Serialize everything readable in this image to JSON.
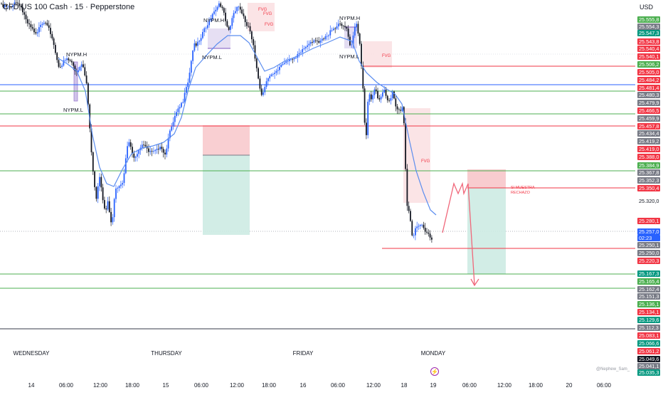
{
  "header": {
    "title": "CFD US 100 Cash · 15 · Pepperstone",
    "currency": "USD"
  },
  "watermark": "@Nephew_Sam_",
  "price_scale": {
    "ticks": [
      {
        "text": "25.555,8",
        "color": "#4caf50"
      },
      {
        "text": "25.554,3",
        "color": "#787b86"
      },
      {
        "text": "25.547,3",
        "color": "#089981"
      },
      {
        "text": "25.543,8",
        "color": "#f23645"
      },
      {
        "text": "25.540,4",
        "color": "#f23645"
      },
      {
        "text": "25.540,1",
        "color": "#f23645"
      },
      {
        "text": "25.506,2",
        "color": "#4caf50"
      },
      {
        "text": "25.505,0",
        "color": "#f23645"
      },
      {
        "text": "25.484,2",
        "color": "#f23645"
      },
      {
        "text": "25.481,4",
        "color": "#f23645"
      },
      {
        "text": "25.480,3",
        "color": "#787b86"
      },
      {
        "text": "25.479,9",
        "color": "#787b86"
      },
      {
        "text": "25.466,5",
        "color": "#f23645"
      },
      {
        "text": "25.459,9",
        "color": "#787b86"
      },
      {
        "text": "25.457,8",
        "color": "#f23645"
      },
      {
        "text": "25.434,4",
        "color": "#787b86"
      },
      {
        "text": "25.419,2",
        "color": "#787b86"
      },
      {
        "text": "25.419,0",
        "color": "#f23645"
      },
      {
        "text": "25.388,0",
        "color": "#f23645"
      },
      {
        "text": "25.384,9",
        "color": "#4caf50"
      },
      {
        "text": "25.367,8",
        "color": "#787b86"
      },
      {
        "text": "25.352,3",
        "color": "#787b86"
      },
      {
        "text": "25.350,4",
        "color": "#f23645"
      },
      {
        "text": "25.320,0",
        "color": "plain"
      },
      {
        "text": "25.280,1",
        "color": "#f23645"
      },
      {
        "text": "25.257,0",
        "color": "#2962ff"
      },
      {
        "text": "02:23",
        "color": "#2962ff"
      },
      {
        "text": "25.250,1",
        "color": "#787b86"
      },
      {
        "text": "25.250,0",
        "color": "#787b86"
      },
      {
        "text": "25.220,3",
        "color": "#f23645"
      },
      {
        "text": "25.167,3",
        "color": "#089981"
      },
      {
        "text": "25.165,4",
        "color": "#4caf50"
      },
      {
        "text": "25.162,4",
        "color": "#787b86"
      },
      {
        "text": "25.151,3",
        "color": "#787b86"
      },
      {
        "text": "25.136,1",
        "color": "#4caf50"
      },
      {
        "text": "25.134,1",
        "color": "#f23645"
      },
      {
        "text": "25.129,6",
        "color": "#089981"
      },
      {
        "text": "25.112,3",
        "color": "#787b86"
      },
      {
        "text": "25.083,1",
        "color": "#f23645"
      },
      {
        "text": "25.066,6",
        "color": "#089981"
      },
      {
        "text": "25.061,2",
        "color": "#f23645"
      },
      {
        "text": "25.049,6",
        "color": "#131722"
      },
      {
        "text": "25.041,1",
        "color": "#787b86"
      },
      {
        "text": "25.035,3",
        "color": "#089981"
      }
    ]
  },
  "time_axis": {
    "day_labels": [
      "WEDNESDAY",
      "THURSDAY",
      "FRIDAY",
      "MONDAY"
    ],
    "tick_labels": [
      "14",
      "06:00",
      "12:00",
      "18:00",
      "15",
      "06:00",
      "12:00",
      "18:00",
      "16",
      "06:00",
      "12:00",
      "18",
      "19",
      "06:00",
      "12:00",
      "18:00",
      "20",
      "06:00"
    ]
  },
  "annotations": {
    "nypm_h": "NYPM.H",
    "nypm_l": "NYPM.L",
    "fvg": "FVG",
    "si_muestra_1": "SI MUESTRA",
    "si_muestra_2": "RECHAZO"
  },
  "chart_data": {
    "type": "candlestick",
    "title": "CFD US 100 Cash · 15 · Pepperstone",
    "ylim": [
      25030,
      25610
    ],
    "key_levels": [
      25506.2,
      25481.4,
      25466.5,
      25459.9,
      25457.8,
      25384.9,
      25350.4,
      25257.0,
      25220.3,
      25167.3,
      25136.1,
      25083.1
    ],
    "current_price": 25257.0,
    "countdown": "02:23",
    "fvg_zones": [
      {
        "label": "FVG",
        "top": 25460,
        "bottom": 25285
      },
      {
        "label": "FVG",
        "top": 25518,
        "bottom": 25490
      },
      {
        "label": "FVG",
        "top": 25599,
        "bottom": 25580
      }
    ],
    "trade_ideas": [
      {
        "entry": 25417,
        "stop": 25458,
        "target": 25257
      },
      {
        "entry": 25350,
        "stop": 25375,
        "target": 25167,
        "note": "SI MUESTRA RECHAZO"
      }
    ]
  }
}
